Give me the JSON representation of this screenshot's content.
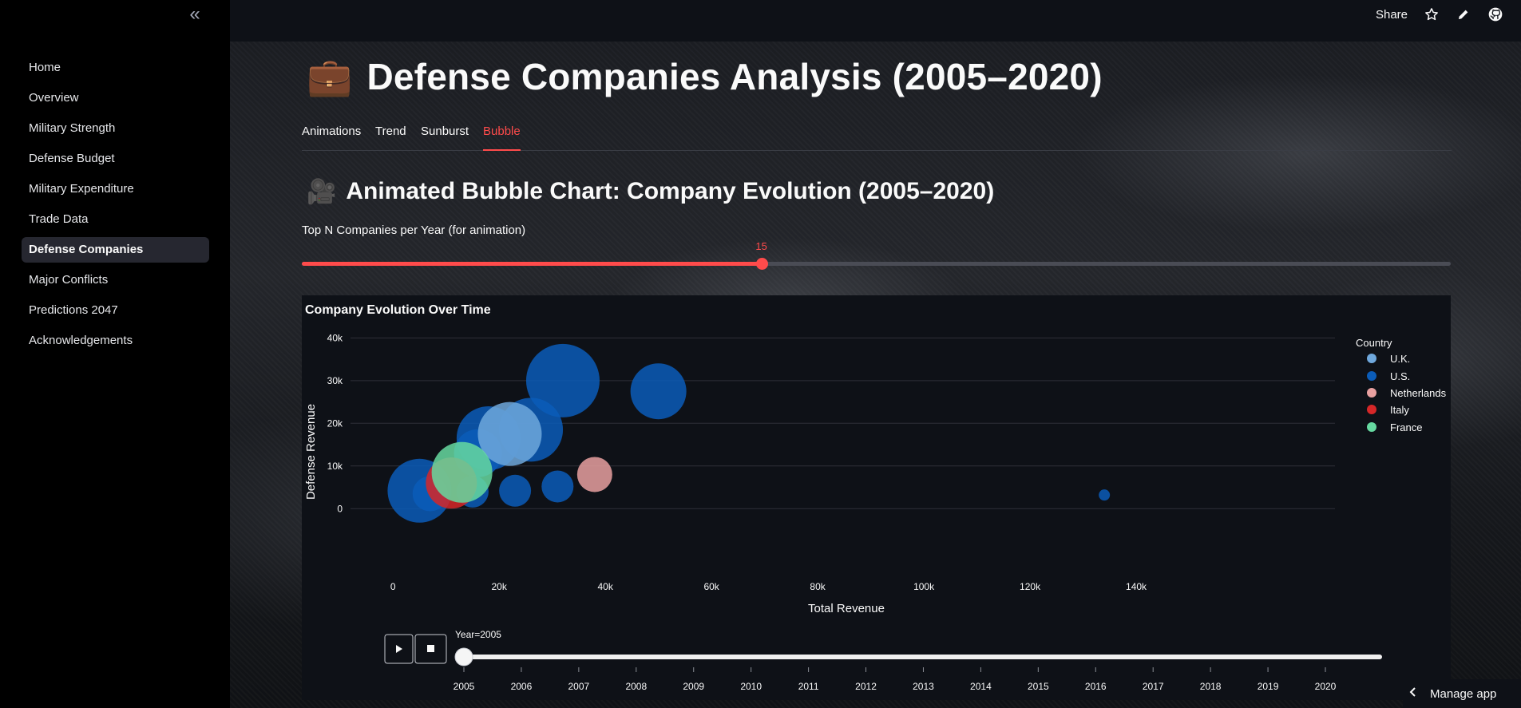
{
  "sidebar": {
    "collapse_icon": "«",
    "items": [
      {
        "label": "Home"
      },
      {
        "label": "Overview"
      },
      {
        "label": "Military Strength"
      },
      {
        "label": "Defense Budget"
      },
      {
        "label": "Military Expenditure"
      },
      {
        "label": "Trade Data"
      },
      {
        "label": "Defense Companies",
        "active": true
      },
      {
        "label": "Major Conflicts"
      },
      {
        "label": "Predictions 2047"
      },
      {
        "label": "Acknowledgements"
      }
    ]
  },
  "header": {
    "share_label": "Share",
    "icons": [
      "star-icon",
      "pencil-icon",
      "github-icon"
    ]
  },
  "page": {
    "title_emoji": "💼",
    "title": "Defense Companies Analysis (2005–2020)",
    "tabs": [
      {
        "label": "Animations"
      },
      {
        "label": "Trend"
      },
      {
        "label": "Sunburst"
      },
      {
        "label": "Bubble",
        "active": true
      }
    ],
    "section_emoji": "🎥",
    "section_title": "Animated Bubble Chart: Company Evolution (2005–2020)",
    "slider": {
      "label": "Top N Companies per Year (for animation)",
      "value": "15",
      "fraction": 0.4
    },
    "manage_app": "Manage app"
  },
  "colors": {
    "accent": "#ff4b4b",
    "uk": "#6fa8dc",
    "us": "#0b5cb8",
    "netherlands": "#e8a0a0",
    "italy": "#d62728",
    "france": "#66d9a0"
  },
  "chart_data": {
    "type": "scatter",
    "title": "Company Evolution Over Time",
    "xlabel": "Total Revenue",
    "ylabel": "Defense Revenue",
    "xlim": [
      -8000,
      143000
    ],
    "ylim": [
      -5000,
      41000
    ],
    "x_ticks": [
      "0",
      "20k",
      "40k",
      "60k",
      "80k",
      "100k",
      "120k",
      "140k"
    ],
    "x_tick_values": [
      0,
      20000,
      40000,
      60000,
      80000,
      100000,
      120000,
      140000
    ],
    "y_ticks": [
      "0",
      "10k",
      "20k",
      "30k",
      "40k"
    ],
    "y_tick_values": [
      0,
      10000,
      20000,
      30000,
      40000
    ],
    "grid": true,
    "legend": {
      "title": "Country",
      "placement": "right",
      "entries": [
        "U.K.",
        "U.S.",
        "Netherlands",
        "Italy",
        "France"
      ]
    },
    "points": [
      {
        "country": "U.S.",
        "x": 5000,
        "y": 4200,
        "size": 40
      },
      {
        "country": "U.S.",
        "x": 7000,
        "y": 3500,
        "size": 22
      },
      {
        "country": "U.S.",
        "x": 15000,
        "y": 4000,
        "size": 20
      },
      {
        "country": "U.S.",
        "x": 23000,
        "y": 4200,
        "size": 20
      },
      {
        "country": "U.S.",
        "x": 31000,
        "y": 5200,
        "size": 20
      },
      {
        "country": "U.S.",
        "x": 18000,
        "y": 16500,
        "size": 40
      },
      {
        "country": "U.S.",
        "x": 16000,
        "y": 13000,
        "size": 30
      },
      {
        "country": "U.S.",
        "x": 26000,
        "y": 18500,
        "size": 40
      },
      {
        "country": "U.S.",
        "x": 32000,
        "y": 30000,
        "size": 46
      },
      {
        "country": "U.S.",
        "x": 50000,
        "y": 27500,
        "size": 35
      },
      {
        "country": "U.S.",
        "x": 134000,
        "y": 3200,
        "size": 7
      },
      {
        "country": "U.K.",
        "x": 22000,
        "y": 17500,
        "size": 40
      },
      {
        "country": "Italy",
        "x": 11000,
        "y": 6000,
        "size": 32
      },
      {
        "country": "France",
        "x": 13000,
        "y": 8500,
        "size": 38
      },
      {
        "country": "Netherlands",
        "x": 38000,
        "y": 8000,
        "size": 22
      }
    ],
    "animation": {
      "current_label": "Year=2005",
      "current_year": "2005",
      "years": [
        "2005",
        "2006",
        "2007",
        "2008",
        "2009",
        "2010",
        "2011",
        "2012",
        "2013",
        "2014",
        "2015",
        "2016",
        "2017",
        "2018",
        "2019",
        "2020"
      ],
      "buttons": [
        "play-icon",
        "stop-icon"
      ]
    }
  }
}
